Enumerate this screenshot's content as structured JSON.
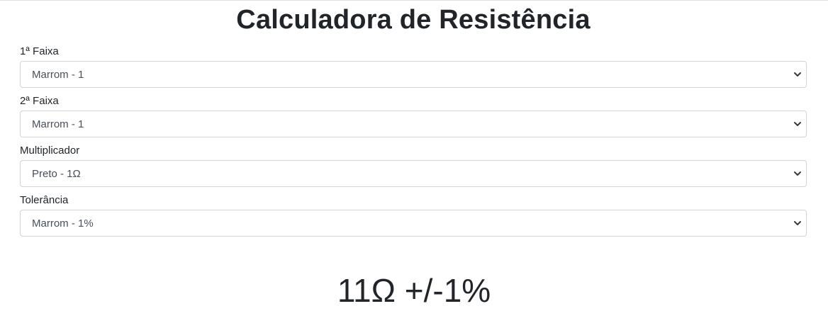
{
  "page": {
    "title": "Calculadora de Resistência"
  },
  "fields": [
    {
      "label": "1ª Faixa",
      "selected": "Marrom - 1"
    },
    {
      "label": "2ª Faixa",
      "selected": "Marrom - 1"
    },
    {
      "label": "Multiplicador",
      "selected": "Preto - 1Ω"
    },
    {
      "label": "Tolerância",
      "selected": "Marrom - 1%"
    }
  ],
  "result": {
    "text": "11Ω +/-1%"
  },
  "icons": {
    "select_arrow": "chevron-down-icon"
  },
  "colors": {
    "text": "#212529",
    "select_text": "#495057",
    "border": "#ced4da"
  }
}
